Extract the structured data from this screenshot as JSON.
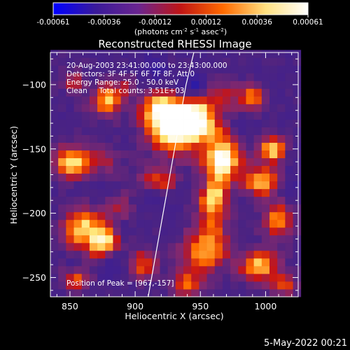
{
  "chart_data": {
    "type": "heatmap",
    "title": "Reconstructed RHESSI Image",
    "xlabel": "Heliocentric X (arcsec)",
    "ylabel": "Heliocentric Y (arcsec)",
    "xlim": [
      835,
      1025
    ],
    "ylim": [
      -265,
      -75
    ],
    "x_ticks": [
      850,
      900,
      950,
      1000
    ],
    "y_ticks": [
      -100,
      -150,
      -200,
      -250
    ],
    "colorbar": {
      "ticks": [
        "-0.00061",
        "-0.00036",
        "-0.00012",
        "0.00012",
        "0.00036",
        "0.00061"
      ],
      "units": "(photons cm",
      "units_exp1": "-2",
      "units_mid": " s",
      "units_exp2": "-1",
      "units_mid2": " asec",
      "units_exp3": "-2",
      "units_end": ")",
      "colors": [
        "#0000ff",
        "#3a1a9a",
        "#6a2590",
        "#c01515",
        "#ff6a00",
        "#ffe080",
        "#ffffff"
      ]
    },
    "annotations": [
      "20-Aug-2003 23:41:00.000 to 23:43:00.000",
      "Detectors: 3F 4F 5F 6F 7F 8F, Att 0",
      "Energy Range: 25.0 - 50.0 keV",
      "Clean     Total counts: 3.51E+03"
    ],
    "peak_label": "Position of Peak = [967,-157]",
    "timestamp": "5-May-2022 00:21",
    "limb_line": [
      [
        910,
        -265
      ],
      [
        939,
        -100
      ],
      [
        945,
        -75
      ]
    ]
  }
}
